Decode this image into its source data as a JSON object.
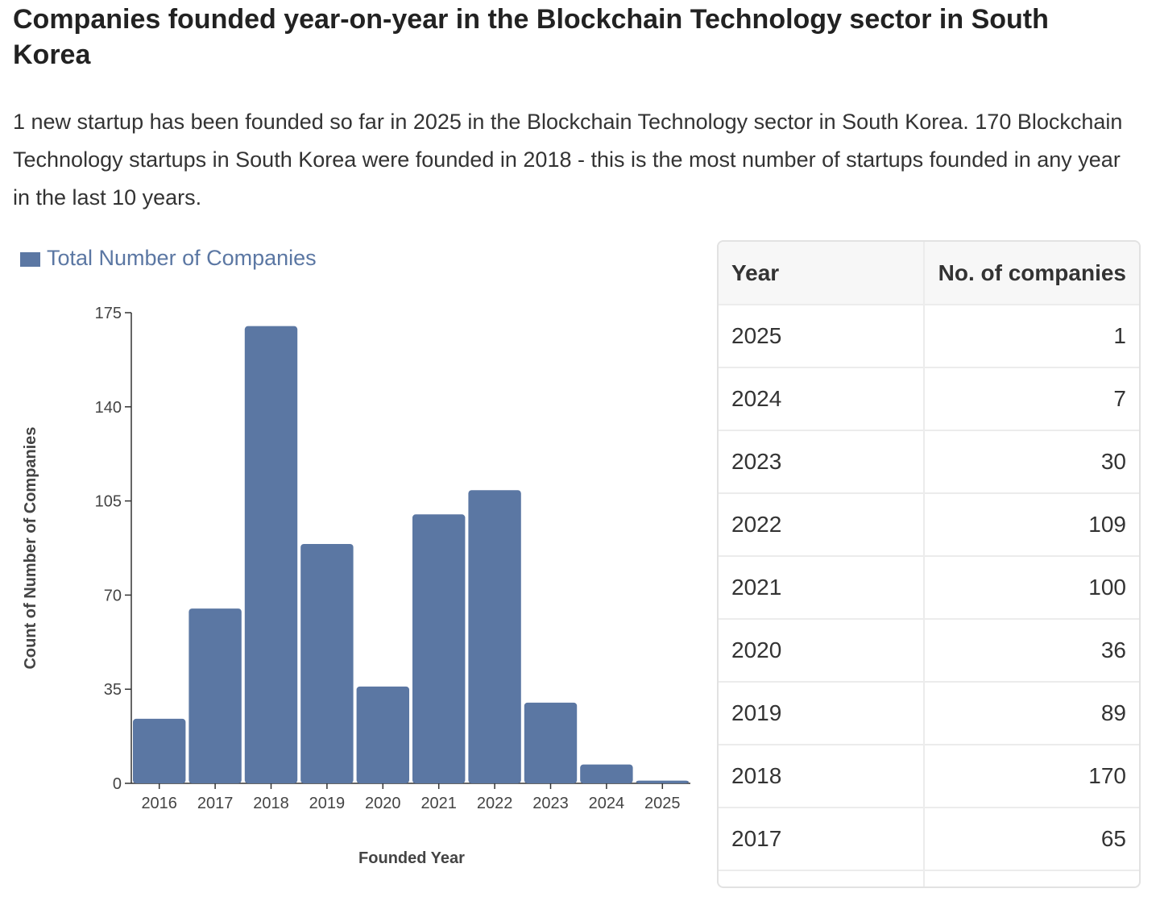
{
  "header": {
    "title": "Companies founded year-on-year in the Blockchain Technology sector in South Korea",
    "description": "1 new startup has been founded so far in 2025 in the Blockchain Technology sector in South Korea. 170 Blockchain Technology startups in South Korea were founded in 2018 - this is the most number of startups founded in any year in the last 10 years."
  },
  "chart_data": {
    "type": "bar",
    "x_label": "Founded Year",
    "y_label": "Count of Number of Companies",
    "categories": [
      "2016",
      "2017",
      "2018",
      "2019",
      "2020",
      "2021",
      "2022",
      "2023",
      "2024",
      "2025"
    ],
    "series": [
      {
        "name": "Total Number of Companies",
        "color": "#5b77a3",
        "values": [
          24,
          65,
          170,
          89,
          36,
          100,
          109,
          30,
          7,
          1
        ]
      }
    ],
    "ylim": [
      0,
      175
    ],
    "yticks": [
      0,
      35,
      70,
      105,
      140,
      175
    ]
  },
  "table": {
    "columns": [
      "Year",
      "No. of companies"
    ],
    "rows": [
      [
        "2025",
        1
      ],
      [
        "2024",
        7
      ],
      [
        "2023",
        30
      ],
      [
        "2022",
        109
      ],
      [
        "2021",
        100
      ],
      [
        "2020",
        36
      ],
      [
        "2019",
        89
      ],
      [
        "2018",
        170
      ],
      [
        "2017",
        65
      ]
    ]
  }
}
